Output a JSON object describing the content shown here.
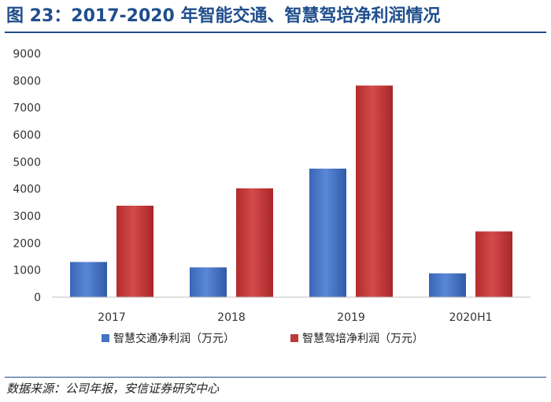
{
  "title": "图 23：2017-2020 年智能交通、智慧驾培净利润情况",
  "source": "数据来源：公司年报，安信证券研究中心",
  "colors": {
    "title": "#1f4e8c",
    "series1": "#4472c4",
    "series2": "#c0393b"
  },
  "chart_data": {
    "type": "bar",
    "categories": [
      "2017",
      "2018",
      "2019",
      "2020H1"
    ],
    "series": [
      {
        "name": "智慧交通净利润（万元）",
        "values": [
          1300,
          1100,
          4750,
          880
        ]
      },
      {
        "name": "智慧驾培净利润（万元）",
        "values": [
          3380,
          4020,
          7820,
          2430
        ]
      }
    ],
    "ylim": [
      0,
      9000
    ],
    "yticks": [
      "0",
      "1000",
      "2000",
      "3000",
      "4000",
      "5000",
      "6000",
      "7000",
      "8000",
      "9000"
    ],
    "grid": false,
    "legend": "bottom"
  }
}
